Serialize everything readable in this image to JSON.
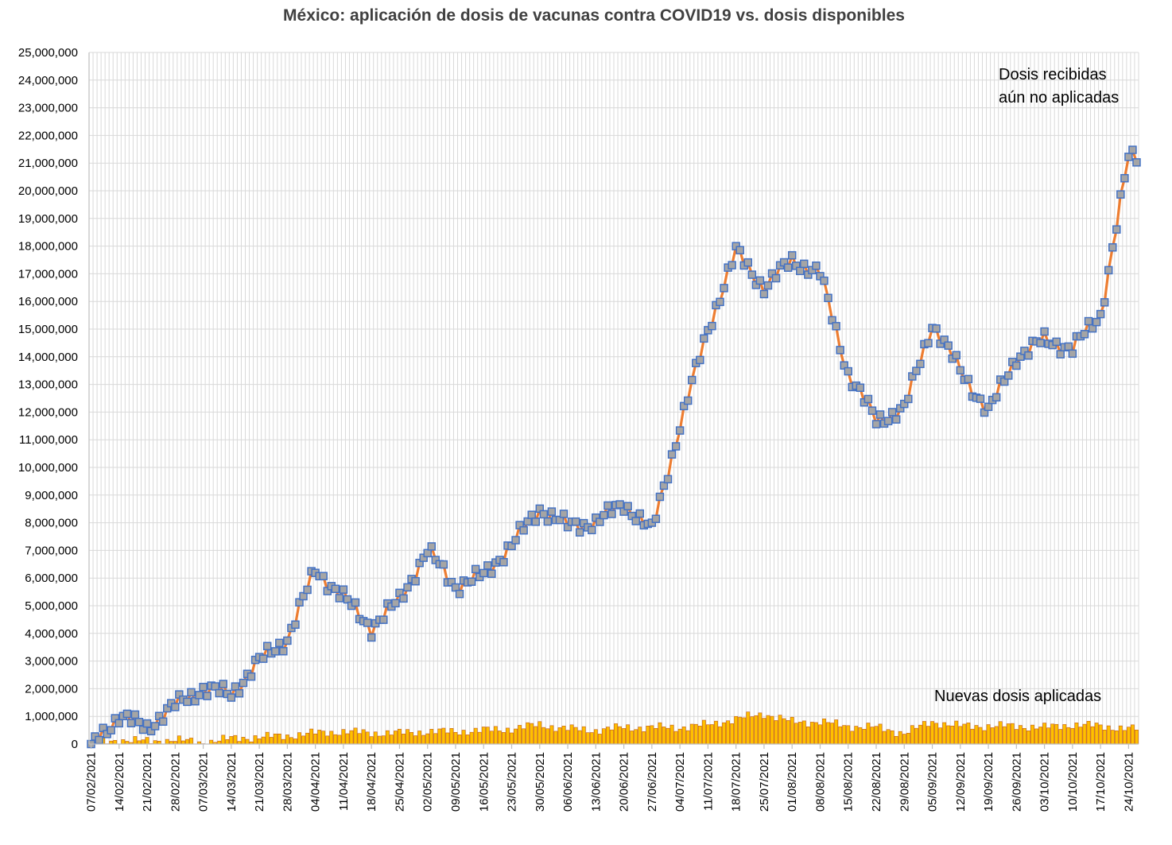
{
  "chart_data": {
    "type": "line+bar",
    "title": "México: aplicación de dosis de vacunas contra COVID19 vs. dosis disponibles",
    "xlabel": "",
    "ylabel": "",
    "ylim": [
      0,
      25000000
    ],
    "grid": true,
    "y_tick_labels": [
      "0",
      "1,000,000",
      "2,000,000",
      "3,000,000",
      "4,000,000",
      "5,000,000",
      "6,000,000",
      "7,000,000",
      "8,000,000",
      "9,000,000",
      "10,000,000",
      "11,000,000",
      "12,000,000",
      "13,000,000",
      "14,000,000",
      "15,000,000",
      "16,000,000",
      "17,000,000",
      "18,000,000",
      "19,000,000",
      "20,000,000",
      "21,000,000",
      "22,000,000",
      "23,000,000",
      "24,000,000",
      "25,000,000"
    ],
    "x_tick_labels": [
      "07/02/2021",
      "14/02/2021",
      "21/02/2021",
      "28/02/2021",
      "07/03/2021",
      "14/03/2021",
      "21/03/2021",
      "28/03/2021",
      "04/04/2021",
      "11/04/2021",
      "18/04/2021",
      "25/04/2021",
      "02/05/2021",
      "09/05/2021",
      "16/05/2021",
      "23/05/2021",
      "30/05/2021",
      "06/06/2021",
      "13/06/2021",
      "20/06/2021",
      "27/06/2021",
      "04/07/2021",
      "11/07/2021",
      "18/07/2021",
      "25/07/2021",
      "01/08/2021",
      "08/08/2021",
      "15/08/2021",
      "22/08/2021",
      "29/08/2021",
      "05/09/2021",
      "12/09/2021",
      "19/09/2021",
      "26/09/2021",
      "03/10/2021",
      "10/10/2021",
      "17/10/2021",
      "24/10/2021"
    ],
    "annotations": {
      "line_label_1": "Dosis recibidas",
      "line_label_2": "aún no aplicadas",
      "bar_label": "Nuevas dosis aplicadas"
    },
    "series": [
      {
        "name": "Dosis recibidas aún no aplicadas",
        "kind": "line",
        "color": "#ed7d31",
        "marker_color": "#a5a5a5",
        "marker_edge": "#4472c4",
        "weekly_values": [
          0,
          1000000,
          600000,
          1400000,
          2000000,
          1800000,
          3000000,
          3800000,
          6300000,
          5300000,
          4200000,
          5200000,
          7000000,
          5700000,
          6100000,
          7200000,
          8500000,
          7900000,
          8000000,
          8700000,
          7700000,
          11500000,
          15000000,
          17800000,
          16500000,
          17500000,
          17000000,
          13400000,
          11700000,
          12100000,
          15200000,
          13500000,
          12000000,
          14000000,
          14600000,
          14300000,
          15500000,
          21200000
        ]
      },
      {
        "name": "Nuevas dosis aplicadas",
        "kind": "bar",
        "color": "#ffc000",
        "edge": "#c55a11",
        "weekly_values": [
          0,
          150000,
          100000,
          150000,
          50000,
          200000,
          250000,
          300000,
          400000,
          450000,
          400000,
          400000,
          450000,
          450000,
          500000,
          550000,
          700000,
          550000,
          500000,
          600000,
          600000,
          600000,
          700000,
          900000,
          1100000,
          800000,
          800000,
          650000,
          600000,
          400000,
          800000,
          650000,
          650000,
          650000,
          600000,
          700000,
          650000,
          550000
        ]
      }
    ]
  }
}
